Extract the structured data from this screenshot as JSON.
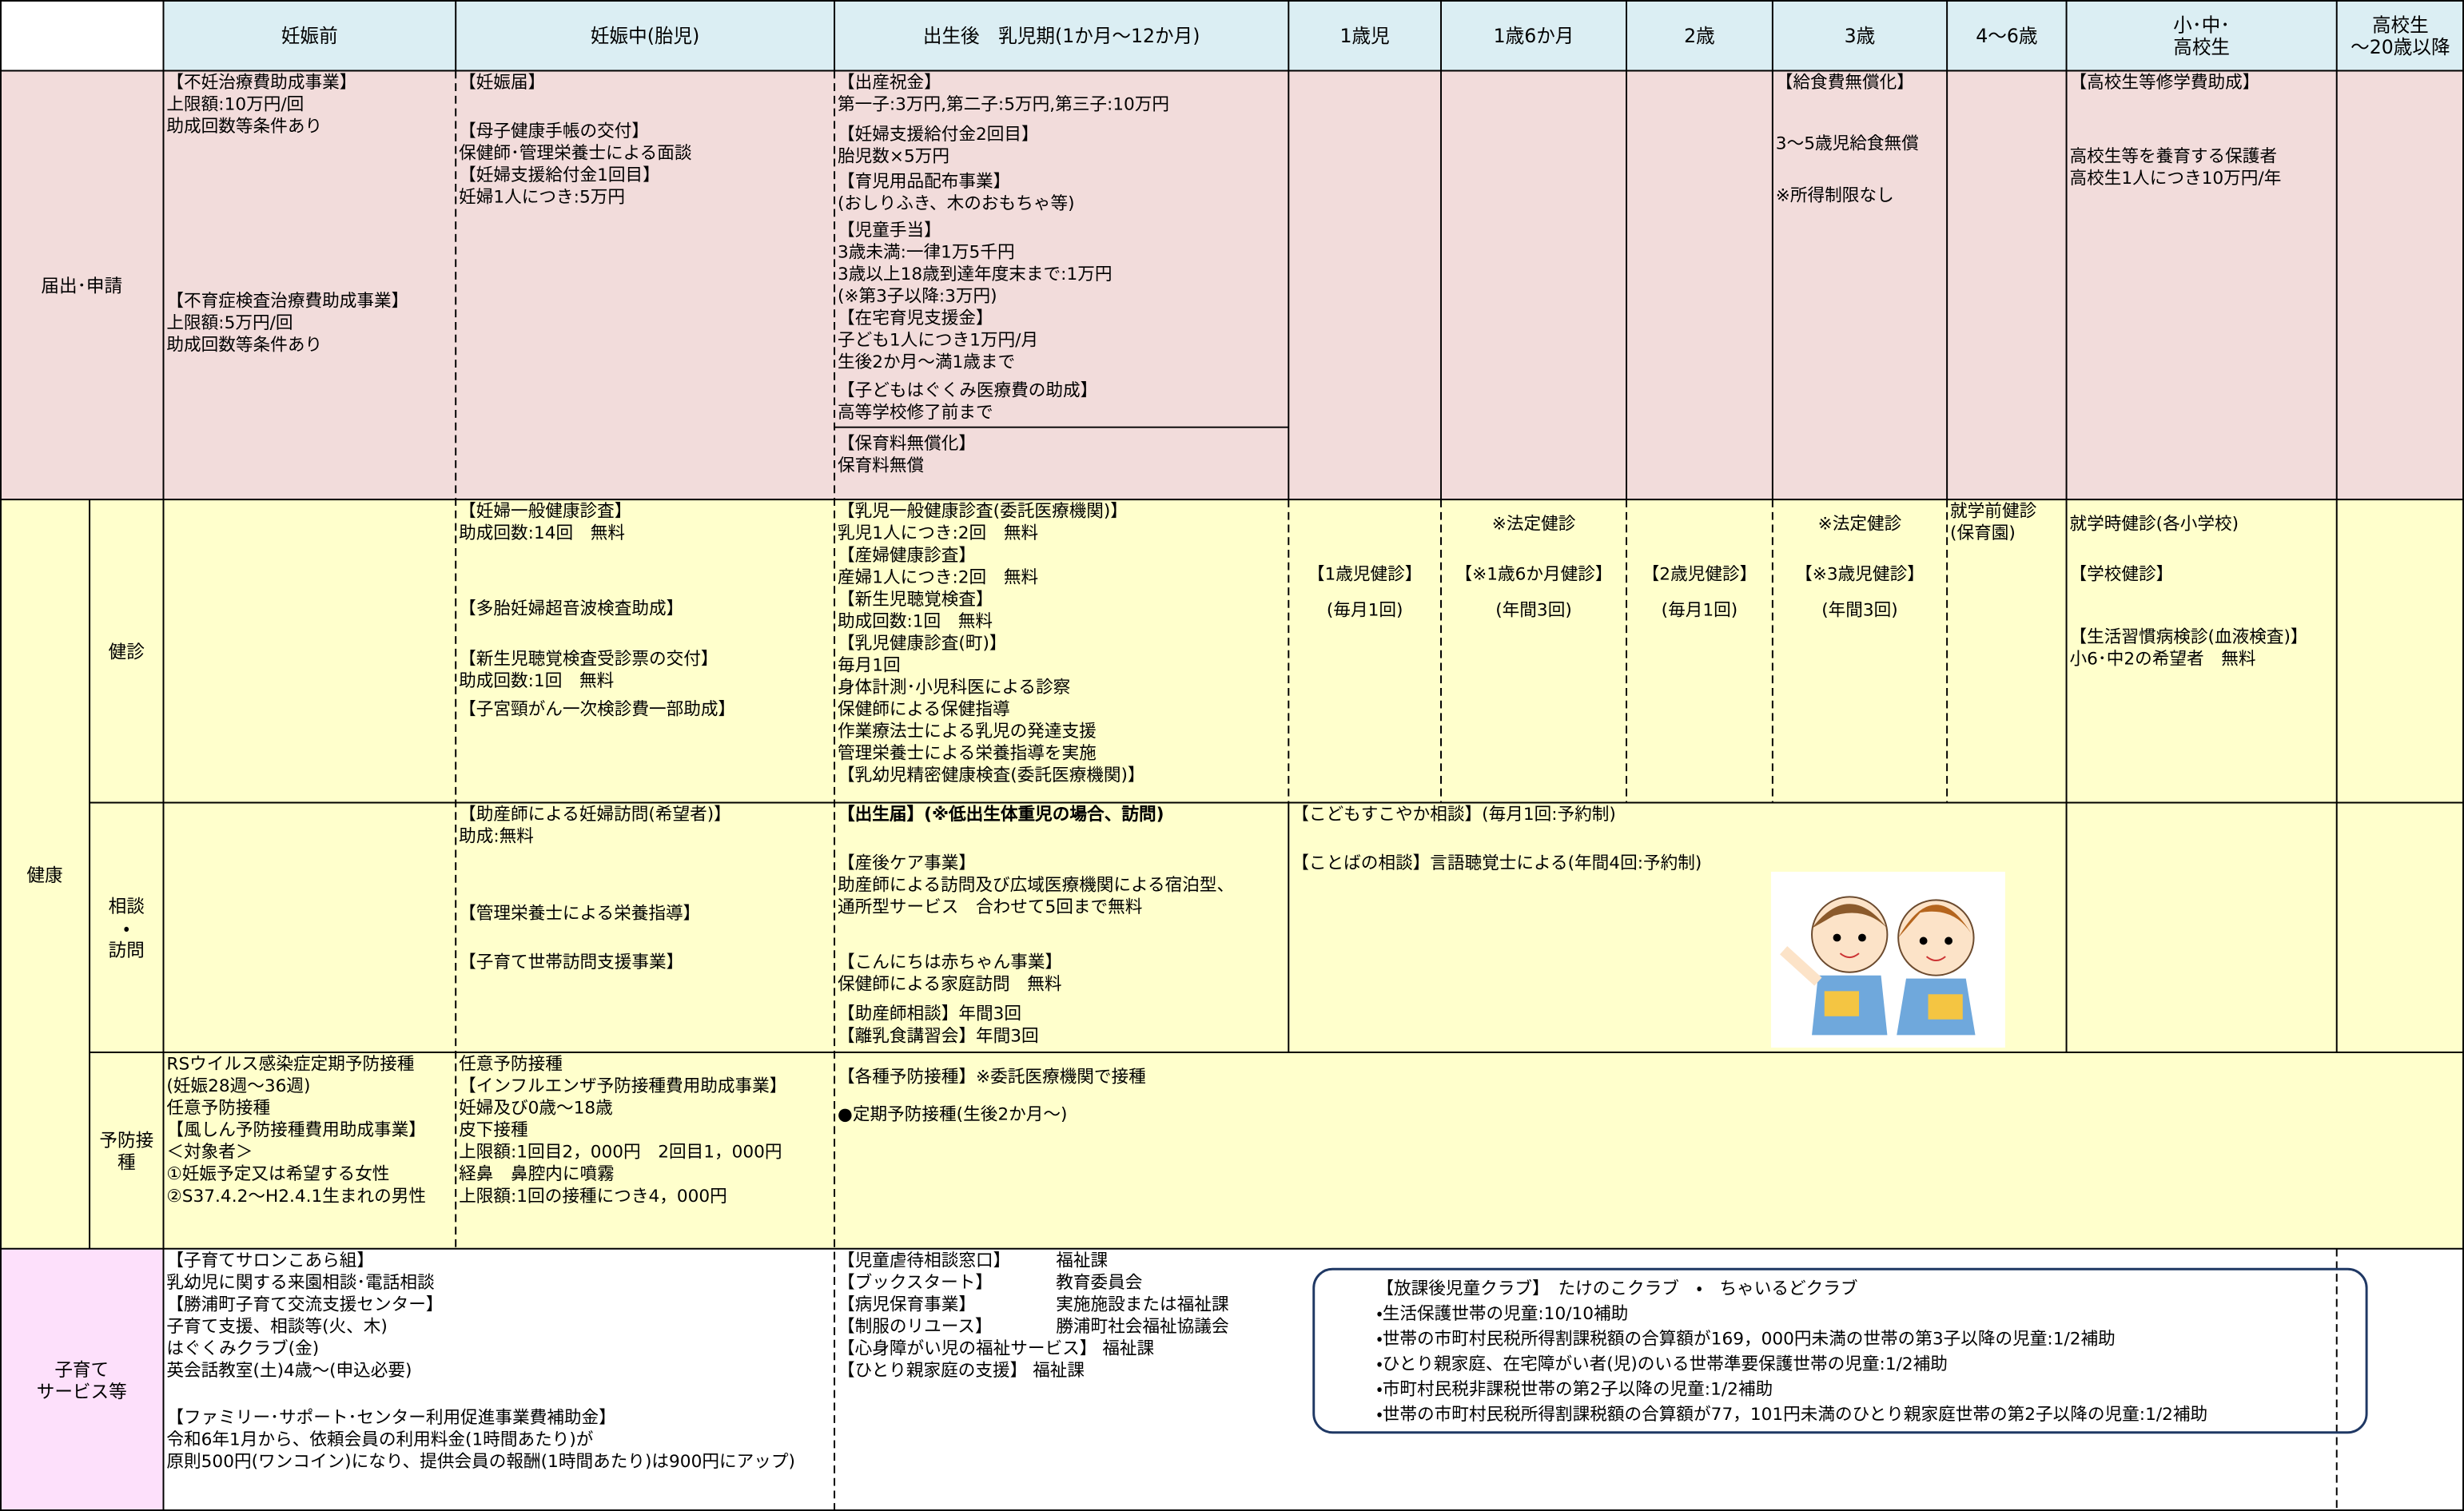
{
  "header": {
    "columns": [
      "妊娠前",
      "妊娠中(胎児)",
      "出生後　乳児期(1か月～12か月)",
      "1歳児",
      "1歳6か月",
      "2歳",
      "3歳",
      "4～6歳",
      "小･中･\n高校生",
      "高校生\n～20歳以降"
    ]
  },
  "todoke": {
    "label": "届出･申請",
    "blocks": [
      "【不妊治療費助成事業】\n上限額:10万円/回\n助成回数等条件あり",
      "【不育症検査治療費助成事業】\n上限額:5万円/回\n助成回数等条件あり",
      "【妊娠届】",
      "【母子健康手帳の交付】\n保健師･管理栄養士による面談\n【妊婦支援給付金1回目】\n妊婦1人につき:5万円",
      "【出産祝金】\n第一子:3万円,第二子:5万円,第三子:10万円",
      "【妊婦支援給付金2回目】\n胎児数×5万円",
      "【育児用品配布事業】\n(おしりふき、木のおもちゃ等)",
      "【児童手当】\n3歳未満:一律1万5千円\n3歳以上18歳到達年度末まで:1万円\n(※第3子以降:3万円)",
      "【在宅育児支援金】\n子ども1人につき1万円/月\n生後2か月～満1歳まで",
      "【子どもはぐくみ医療費の助成】\n高等学校修了前まで",
      "【保育料無償化】\n保育料無償",
      "【給食費無償化】",
      "3～5歳児給食無償",
      "※所得制限なし",
      "【高校生等修学費助成】",
      "高校生等を養育する保護者\n高校生1人につき10万円/年"
    ]
  },
  "kenkou": {
    "label": "健康",
    "kenshin": {
      "label": "健診",
      "blocks": [
        "【妊婦一般健康診査】\n助成回数:14回　無料",
        "【多胎妊婦超音波検査助成】",
        "【新生児聴覚検査受診票の交付】\n助成回数:1回　無料",
        "【子宮頸がん一次検診費一部助成】",
        "【乳児一般健康診査(委託医療機関)】\n乳児1人につき:2回　無料\n【産婦健康診査】\n産婦1人につき:2回　無料\n【新生児聴覚検査】\n助成回数:1回　無料\n【乳児健康診査(町)】\n毎月1回\n身体計測･小児科医による診察\n保健師による保健指導\n作業療法士による乳児の発達支援\n管理栄養士による栄養指導を実施\n【乳幼児精密健康検査(委託医療機関)】",
        "【1歳児健診】",
        "(毎月1回)",
        "※法定健診",
        "【※1歳6か月健診】",
        "(年間3回)",
        "【2歳児健診】",
        "(毎月1回)",
        "※法定健診",
        "【※3歳児健診】",
        "(年間3回)",
        "就学前健診\n(保育園)",
        "就学時健診(各小学校)",
        "【学校健診】",
        "【生活習慣病検診(血液検査)】\n小6･中2の希望者　無料"
      ]
    },
    "soudan": {
      "label": "相談\n・\n訪問",
      "blocks": [
        "【助産師による妊婦訪問(希望者)】\n助成:無料",
        "【管理栄養士による栄養指導】",
        "【子育て世帯訪問支援事業】",
        "【出生届】(※低出生体重児の場合、訪問)",
        "【産後ケア事業】\n助産師による訪問及び広域医療機関による宿泊型、\n通所型サービス　合わせて5回まで無料",
        "【こんにちは赤ちゃん事業】\n保健師による家庭訪問　無料",
        "【助産師相談】年間3回\n【離乳食講習会】年間3回",
        "【こどもすこやか相談】(毎月1回:予約制)",
        "【ことばの相談】言語聴覚士による(年間4回:予約制)"
      ]
    },
    "yobou": {
      "label": "予防接\n種",
      "blocks": [
        "RSウイルス感染症定期予防接種\n(妊娠28週～36週)\n任意予防接種\n【風しん予防接種費用助成事業】\n＜対象者＞\n①妊娠予定又は希望する女性\n②S37.4.2～H2.4.1生まれの男性",
        "任意予防接種\n【インフルエンザ予防接種費用助成事業】\n妊婦及び0歳～18歳\n皮下接種\n上限額:1回目2，000円　2回目1，000円\n経鼻　鼻腔内に噴霧\n上限額:1回の接種につき4，000円",
        "【各種予防接種】※委託医療機関で接種",
        "●定期予防接種(生後2か月～)"
      ]
    }
  },
  "kosodate": {
    "label": "子育て\nサービス等",
    "blocks": [
      "【子育てサロンこあら組】\n乳幼児に関する来園相談･電話相談\n【勝浦町子育て交流支援センター】\n子育て支援、相談等(火、木)\nはぐくみクラブ(金)\n英会話教室(土)4歳～(申込必要)",
      "【ファミリー･サポート･センター利用促進事業費補助金】\n令和6年1月から、依頼会員の利用料金(1時間あたり)が\n原則500円(ワンコイン)になり、提供会員の報酬(1時間あたり)は900円にアップ)"
    ],
    "services": [
      [
        "【児童虐待相談窓口】",
        "福祉課"
      ],
      [
        "【ブックスタート】",
        "教育委員会"
      ],
      [
        "【病児保育事業】",
        "実施施設または福祉課"
      ],
      [
        "【制服のリユース】",
        "勝浦町社会福祉協議会"
      ],
      [
        "【心身障がい児の福祉サービス】 福祉課"
      ],
      [
        "【ひとり親家庭の支援】 福祉課"
      ]
    ],
    "club": "【放課後児童クラブ】　たけのこクラブ　・　ちゃいるどクラブ\n・生活保護世帯の児童:10/10補助\n・世帯の市町村民税所得割課税額の合算額が169，000円未満の世帯の第3子以降の児童:1/2補助\n・ひとり親家庭、在宅障がい者(児)のいる世帯準要保護世帯の児童:1/2補助\n・市町村民税非課税世帯の第2子以降の児童:1/2補助\n・世帯の市町村民税所得割課税額の合算額が77，101円未満のひとり親家庭世帯の第2子以降の児童:1/2補助"
  }
}
